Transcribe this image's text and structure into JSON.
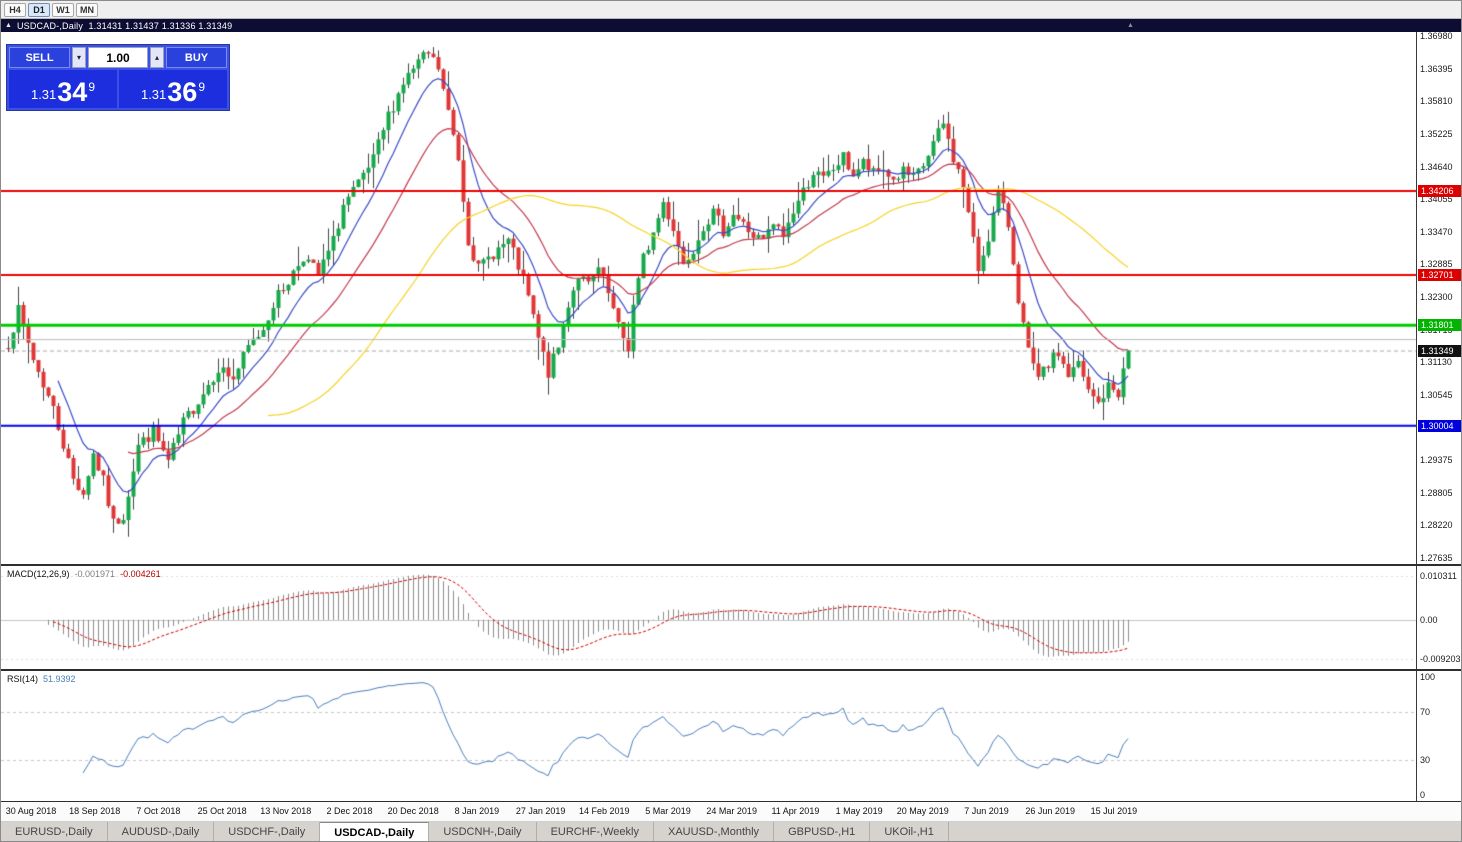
{
  "window": {
    "toolbar": {
      "timeframes": [
        "H4",
        "D1",
        "W1",
        "MN"
      ],
      "active": "D1"
    }
  },
  "chart": {
    "title": {
      "collapse_icon": "▲",
      "symbol_label": "USDCAD-,Daily",
      "ohlc": "1.31431 1.31437 1.31336 1.31349"
    },
    "shift_marker": "▲",
    "trade_panel": {
      "sell_label": "SELL",
      "buy_label": "BUY",
      "volume": "1.00",
      "volume_down_icon": "▾",
      "volume_up_icon": "▴",
      "sell_price": {
        "big_prefix": "1.31",
        "big": "34",
        "sup": "9"
      },
      "buy_price": {
        "big_prefix": "1.31",
        "big": "36",
        "sup": "9"
      }
    }
  },
  "tabs": {
    "items": [
      "EURUSD-,Daily",
      "AUDUSD-,Daily",
      "USDCHF-,Daily",
      "USDCAD-,Daily",
      "USDCNH-,Daily",
      "EURCHF-,Weekly",
      "XAUUSD-,Monthly",
      "GBPUSD-,H1",
      "UKOil-,H1"
    ],
    "active_index": 3
  },
  "chart_data": {
    "type": "candlestick",
    "symbol": "USDCAD-",
    "timeframe": "Daily",
    "title": "USDCAD-,Daily",
    "ohlc_display": {
      "open": "1.31431",
      "high": "1.31437",
      "low": "1.31336",
      "close": "1.31349"
    },
    "y_ticks": [
      "1.36980",
      "1.36395",
      "1.35810",
      "1.35225",
      "1.34640",
      "1.34055",
      "1.33470",
      "1.32885",
      "1.32300",
      "1.31715",
      "1.31130",
      "1.30545",
      "1.29960",
      "1.29375",
      "1.28805",
      "1.28220",
      "1.27635"
    ],
    "price_range": {
      "top": 1.3698,
      "bottom": 1.27635
    },
    "x_labels": [
      "30 Aug 2018",
      "18 Sep 2018",
      "7 Oct 2018",
      "25 Oct 2018",
      "13 Nov 2018",
      "2 Dec 2018",
      "20 Dec 2018",
      "8 Jan 2019",
      "27 Jan 2019",
      "14 Feb 2019",
      "5 Mar 2019",
      "24 Mar 2019",
      "11 Apr 2019",
      "1 May 2019",
      "20 May 2019",
      "7 Jun 2019",
      "26 Jun 2019",
      "15 Jul 2019"
    ],
    "colors": {
      "up": "#17a84b",
      "down": "#e03636",
      "wick": "#444444",
      "current_line": "#aaaaaa"
    },
    "candles": {
      "count": 225,
      "seed": 7,
      "noise": 0.0012,
      "wick": 0.0042,
      "keypoints": [
        [
          0,
          1.315
        ],
        [
          2,
          1.3205
        ],
        [
          5,
          1.312
        ],
        [
          9,
          1.303
        ],
        [
          13,
          1.2905
        ],
        [
          15,
          1.288
        ],
        [
          17,
          1.295
        ],
        [
          19,
          1.29
        ],
        [
          21,
          1.2825
        ],
        [
          23,
          1.284
        ],
        [
          26,
          1.2965
        ],
        [
          29,
          1.299
        ],
        [
          32,
          1.2935
        ],
        [
          35,
          1.3005
        ],
        [
          39,
          1.306
        ],
        [
          42,
          1.3105
        ],
        [
          45,
          1.3085
        ],
        [
          48,
          1.314
        ],
        [
          51,
          1.3175
        ],
        [
          53,
          1.322
        ],
        [
          56,
          1.326
        ],
        [
          59,
          1.3305
        ],
        [
          62,
          1.327
        ],
        [
          65,
          1.333
        ],
        [
          67,
          1.3395
        ],
        [
          70,
          1.343
        ],
        [
          73,
          1.3475
        ],
        [
          76,
          1.3555
        ],
        [
          79,
          1.3615
        ],
        [
          82,
          1.365
        ],
        [
          84,
          1.3665
        ],
        [
          86,
          1.364
        ],
        [
          88,
          1.356
        ],
        [
          90,
          1.348
        ],
        [
          92,
          1.3335
        ],
        [
          94,
          1.328
        ],
        [
          97,
          1.331
        ],
        [
          100,
          1.333
        ],
        [
          102,
          1.3285
        ],
        [
          104,
          1.323
        ],
        [
          106,
          1.3155
        ],
        [
          108,
          1.3095
        ],
        [
          110,
          1.314
        ],
        [
          112,
          1.322
        ],
        [
          114,
          1.327
        ],
        [
          116,
          1.325
        ],
        [
          118,
          1.328
        ],
        [
          120,
          1.3235
        ],
        [
          122,
          1.3175
        ],
        [
          124,
          1.314
        ],
        [
          125,
          1.3215
        ],
        [
          127,
          1.33
        ],
        [
          129,
          1.3345
        ],
        [
          131,
          1.34
        ],
        [
          133,
          1.3355
        ],
        [
          135,
          1.329
        ],
        [
          137,
          1.332
        ],
        [
          139,
          1.336
        ],
        [
          141,
          1.338
        ],
        [
          143,
          1.335
        ],
        [
          145,
          1.338
        ],
        [
          147,
          1.336
        ],
        [
          149,
          1.334
        ],
        [
          151,
          1.333
        ],
        [
          153,
          1.336
        ],
        [
          155,
          1.334
        ],
        [
          157,
          1.3385
        ],
        [
          159,
          1.342
        ],
        [
          161,
          1.3455
        ],
        [
          163,
          1.344
        ],
        [
          165,
          1.346
        ],
        [
          167,
          1.348
        ],
        [
          169,
          1.345
        ],
        [
          171,
          1.347
        ],
        [
          173,
          1.345
        ],
        [
          175,
          1.346
        ],
        [
          177,
          1.344
        ],
        [
          179,
          1.3455
        ],
        [
          181,
          1.344
        ],
        [
          183,
          1.3465
        ],
        [
          185,
          1.3505
        ],
        [
          187,
          1.354
        ],
        [
          189,
          1.348
        ],
        [
          191,
          1.343
        ],
        [
          193,
          1.333
        ],
        [
          194,
          1.328
        ],
        [
          196,
          1.334
        ],
        [
          198,
          1.3415
        ],
        [
          200,
          1.336
        ],
        [
          202,
          1.323
        ],
        [
          204,
          1.313
        ],
        [
          206,
          1.308
        ],
        [
          208,
          1.311
        ],
        [
          210,
          1.313
        ],
        [
          212,
          1.309
        ],
        [
          214,
          1.311
        ],
        [
          216,
          1.306
        ],
        [
          218,
          1.304
        ],
        [
          220,
          1.307
        ],
        [
          222,
          1.306
        ],
        [
          224,
          1.3135
        ]
      ]
    },
    "moving_averages": [
      {
        "period": 10,
        "method": "ema",
        "color": "#3b4cc8"
      },
      {
        "period": 24,
        "method": "ema",
        "color": "#c23b50"
      },
      {
        "period": 52,
        "method": "sma",
        "color": "#f5d327"
      }
    ],
    "horizontal_lines": [
      {
        "value": 1.34206,
        "label": "1.34206",
        "color": "#ee0000",
        "badge": "#dd0000",
        "width": 2
      },
      {
        "value": 1.32701,
        "label": "1.32701",
        "color": "#ee0000",
        "badge": "#dd0000",
        "width": 2
      },
      {
        "value": 1.31801,
        "label": "1.31801",
        "color": "#00cc00",
        "badge": "#00b400",
        "width": 3
      },
      {
        "value": 1.31545,
        "label": null,
        "color": "#bbbbbb",
        "badge": null,
        "width": 1
      },
      {
        "value": 1.30004,
        "label": "1.30004",
        "color": "#0000ee",
        "badge": "#0000dd",
        "width": 2
      }
    ],
    "current_price": {
      "value": 1.31349,
      "label": "1.31349",
      "badge_color": "#111111"
    },
    "indicators": [
      {
        "name": "MACD",
        "label": "MACD(12,26,9)",
        "display_values": [
          "-0.001971",
          "-0.004261"
        ],
        "axis_labels": [
          "0.010311",
          "0.00",
          "-0.009203"
        ],
        "axis_values": [
          0.010311,
          0,
          -0.009203
        ],
        "histogram_color": "#8c8c8c",
        "signal_color": "#cc0000"
      },
      {
        "name": "RSI",
        "label": "RSI(14)",
        "display_value": "51.9392",
        "axis_labels": [
          "100",
          "70",
          "30",
          "0"
        ],
        "axis_values": [
          100,
          70,
          30,
          0
        ],
        "levels": [
          70,
          30
        ],
        "line_color": "#4a7ebb"
      }
    ]
  }
}
